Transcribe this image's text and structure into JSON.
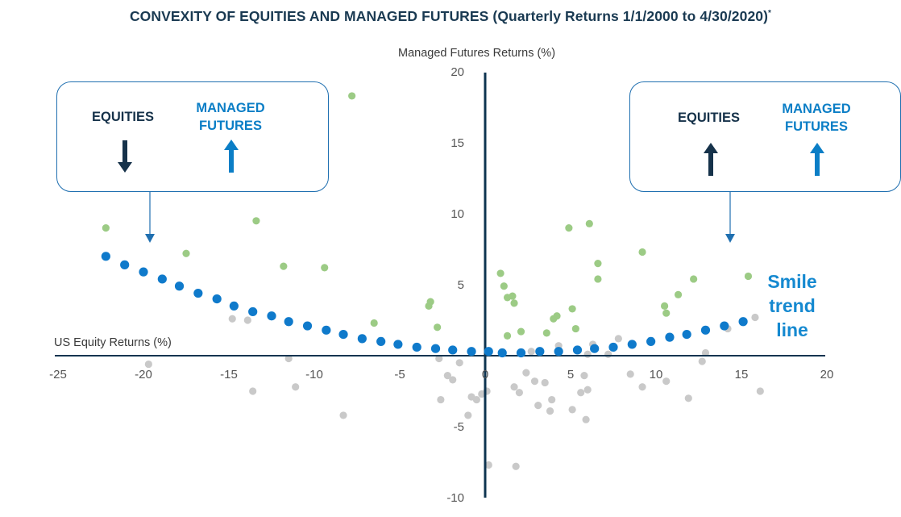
{
  "title": "CONVEXITY OF EQUITIES AND MANAGED FUTURES (Quarterly Returns 1/1/2000 to 4/30/2020)",
  "title_mark": "*",
  "colors": {
    "equities_text": "#16324a",
    "mf_text": "#0b7ec6",
    "box_border": "#1f6fb0",
    "trend_dots": "#0f7acb",
    "green_dots": "#9ccb85",
    "gray_dots": "#c9c9c9",
    "axis": "#0e3450"
  },
  "boxes": {
    "left": {
      "equities_label": "EQUITIES",
      "mf_label": "MANAGED\nFUTURES",
      "equities_arrow": "down-arrow-icon",
      "mf_arrow": "up-arrow-icon"
    },
    "right": {
      "equities_label": "EQUITIES",
      "mf_label": "MANAGED\nFUTURES",
      "equities_arrow": "up-arrow-icon",
      "mf_arrow": "up-arrow-icon"
    }
  },
  "annotation": "Smile\ntrend\nline",
  "chart_data": {
    "type": "scatter",
    "xlabel": "US Equity Returns (%)",
    "ylabel": "Managed Futures Returns (%)",
    "xlim": [
      -25,
      20
    ],
    "ylim": [
      -10,
      20
    ],
    "x_ticks": [
      -25,
      -20,
      -15,
      -10,
      -5,
      0,
      5,
      10,
      15,
      20
    ],
    "y_ticks": [
      -10,
      -5,
      5,
      10,
      15,
      20
    ],
    "grid": false,
    "series": [
      {
        "color": "#0f7acb",
        "points": [
          [
            -22.2,
            7.0
          ],
          [
            -21.1,
            6.4
          ],
          [
            -20.0,
            5.9
          ],
          [
            -18.9,
            5.4
          ],
          [
            -17.9,
            4.9
          ],
          [
            -16.8,
            4.4
          ],
          [
            -15.7,
            4.0
          ],
          [
            -14.7,
            3.5
          ],
          [
            -13.6,
            3.1
          ],
          [
            -12.5,
            2.8
          ],
          [
            -11.5,
            2.4
          ],
          [
            -10.4,
            2.1
          ],
          [
            -9.3,
            1.8
          ],
          [
            -8.3,
            1.5
          ],
          [
            -7.2,
            1.2
          ],
          [
            -6.1,
            1.0
          ],
          [
            -5.1,
            0.8
          ],
          [
            -4.0,
            0.6
          ],
          [
            -2.9,
            0.5
          ],
          [
            -1.9,
            0.4
          ],
          [
            -0.8,
            0.3
          ],
          [
            0.2,
            0.3
          ],
          [
            1.0,
            0.2
          ],
          [
            2.1,
            0.2
          ],
          [
            3.2,
            0.3
          ],
          [
            4.3,
            0.3
          ],
          [
            5.4,
            0.4
          ],
          [
            6.4,
            0.5
          ],
          [
            7.5,
            0.6
          ],
          [
            8.6,
            0.8
          ],
          [
            9.7,
            1.0
          ],
          [
            10.8,
            1.3
          ],
          [
            11.8,
            1.5
          ],
          [
            12.9,
            1.8
          ],
          [
            14.0,
            2.1
          ],
          [
            15.1,
            2.4
          ]
        ]
      },
      {
        "color": "#9ccb85",
        "points": [
          [
            -22.2,
            9.0
          ],
          [
            -17.5,
            7.2
          ],
          [
            -13.4,
            9.5
          ],
          [
            -11.8,
            6.3
          ],
          [
            -9.4,
            6.2
          ],
          [
            -7.8,
            18.3
          ],
          [
            -6.5,
            2.3
          ],
          [
            -3.3,
            3.5
          ],
          [
            -3.2,
            3.8
          ],
          [
            -2.8,
            2.0
          ],
          [
            0.9,
            5.8
          ],
          [
            1.1,
            4.9
          ],
          [
            1.3,
            4.1
          ],
          [
            1.6,
            4.2
          ],
          [
            1.7,
            3.7
          ],
          [
            1.3,
            1.4
          ],
          [
            2.1,
            1.7
          ],
          [
            3.6,
            1.6
          ],
          [
            4.0,
            2.6
          ],
          [
            4.2,
            2.8
          ],
          [
            4.9,
            9.0
          ],
          [
            5.1,
            3.3
          ],
          [
            5.3,
            1.9
          ],
          [
            6.1,
            9.3
          ],
          [
            6.6,
            6.5
          ],
          [
            6.6,
            5.4
          ],
          [
            9.2,
            7.3
          ],
          [
            10.5,
            3.5
          ],
          [
            10.6,
            3.0
          ],
          [
            11.3,
            4.3
          ],
          [
            12.2,
            5.4
          ],
          [
            15.4,
            5.6
          ]
        ]
      },
      {
        "color": "#c9c9c9",
        "points": [
          [
            -19.7,
            -0.6
          ],
          [
            -14.8,
            2.6
          ],
          [
            -13.9,
            2.5
          ],
          [
            -13.6,
            -2.5
          ],
          [
            -11.5,
            -0.2
          ],
          [
            -11.1,
            -2.2
          ],
          [
            -8.3,
            -4.2
          ],
          [
            -2.7,
            -0.2
          ],
          [
            -2.6,
            -3.1
          ],
          [
            -2.2,
            -1.4
          ],
          [
            -1.9,
            -1.7
          ],
          [
            -1.5,
            -0.5
          ],
          [
            -1.0,
            -4.2
          ],
          [
            -0.8,
            -2.9
          ],
          [
            -0.5,
            -3.1
          ],
          [
            -0.2,
            -2.7
          ],
          [
            0.1,
            -2.5
          ],
          [
            0.2,
            -7.7
          ],
          [
            1.8,
            -7.8
          ],
          [
            1.7,
            -2.2
          ],
          [
            2.0,
            -2.6
          ],
          [
            2.4,
            -1.2
          ],
          [
            2.7,
            0.3
          ],
          [
            2.9,
            -1.8
          ],
          [
            3.1,
            -3.5
          ],
          [
            3.5,
            -1.9
          ],
          [
            3.8,
            -3.9
          ],
          [
            3.9,
            -3.1
          ],
          [
            4.3,
            0.7
          ],
          [
            5.1,
            -3.8
          ],
          [
            5.6,
            -2.6
          ],
          [
            5.8,
            -1.4
          ],
          [
            5.9,
            -4.5
          ],
          [
            6.0,
            -2.4
          ],
          [
            6.0,
            0.1
          ],
          [
            6.3,
            0.8
          ],
          [
            7.2,
            0.1
          ],
          [
            7.8,
            1.2
          ],
          [
            8.5,
            -1.3
          ],
          [
            9.2,
            -2.2
          ],
          [
            10.6,
            -1.8
          ],
          [
            11.9,
            -3.0
          ],
          [
            12.7,
            -0.4
          ],
          [
            12.9,
            0.2
          ],
          [
            14.2,
            1.9
          ],
          [
            15.8,
            2.7
          ],
          [
            16.1,
            -2.5
          ]
        ]
      }
    ]
  }
}
